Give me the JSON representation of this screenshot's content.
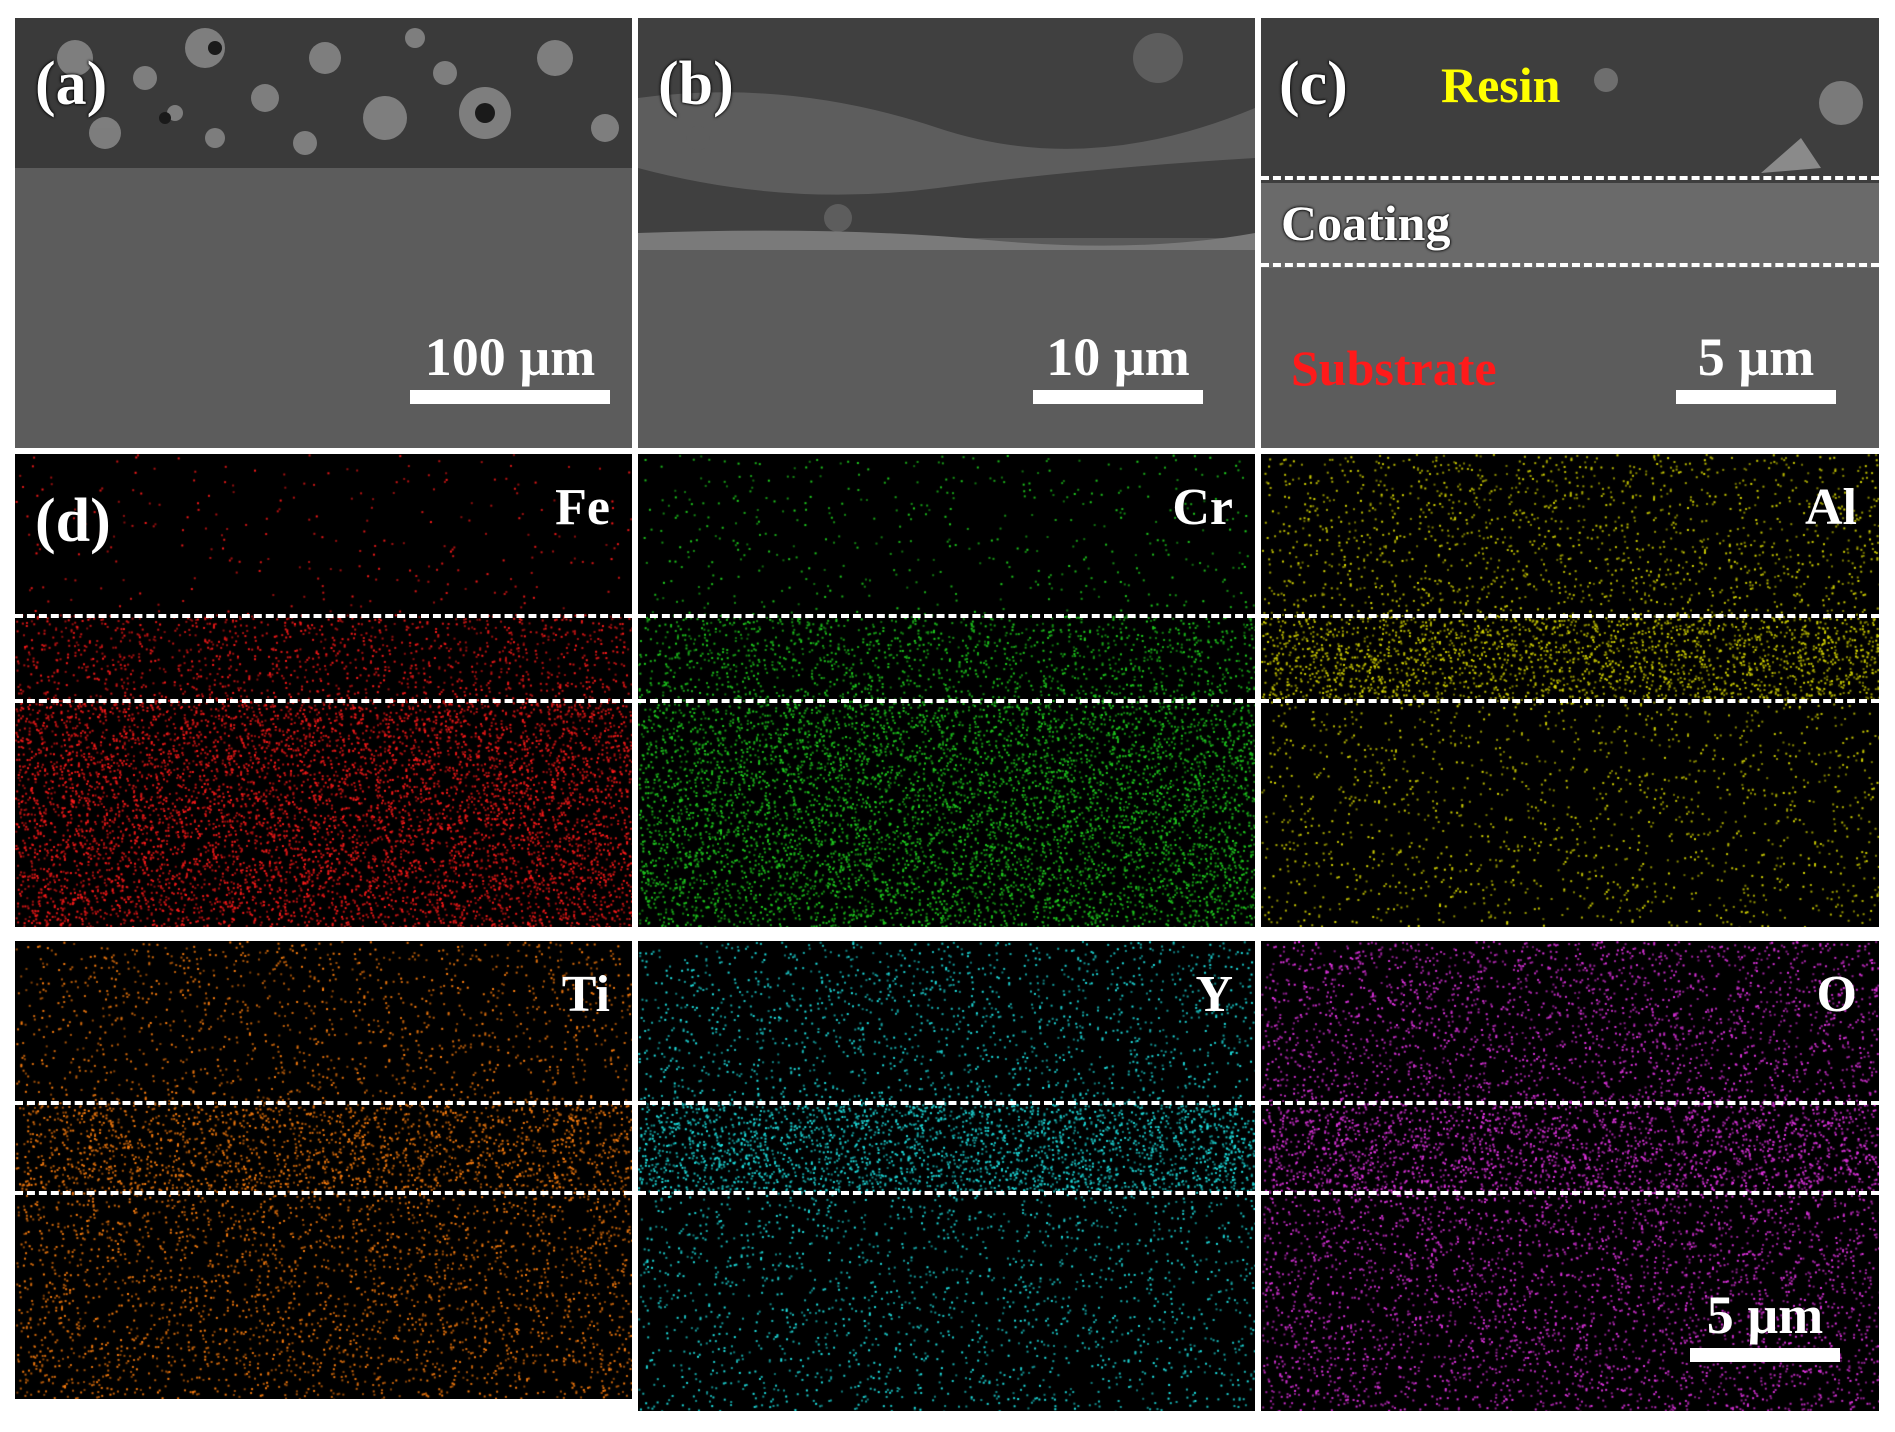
{
  "panels": {
    "a": {
      "label": "(a)",
      "scale": "100 µm"
    },
    "b": {
      "label": "(b)",
      "scale": "10 µm"
    },
    "c": {
      "label": "(c)",
      "scale": "5 µm",
      "resin": "Resin",
      "coating": "Coating",
      "substrate": "Substrate"
    },
    "d": {
      "label": "(d)",
      "scale": "5 µm"
    }
  },
  "maps": [
    {
      "element": "Fe",
      "color": "#ff1a1a"
    },
    {
      "element": "Cr",
      "color": "#1fd21f"
    },
    {
      "element": "Al",
      "color": "#d8d800"
    },
    {
      "element": "Ti",
      "color": "#ff7f0e"
    },
    {
      "element": "Y",
      "color": "#1ee6e6"
    },
    {
      "element": "O",
      "color": "#e633e6"
    }
  ],
  "colors": {
    "resin_label": "#ffff00",
    "substrate_label": "#ff1a1a",
    "coating_label": "#ffffff"
  }
}
